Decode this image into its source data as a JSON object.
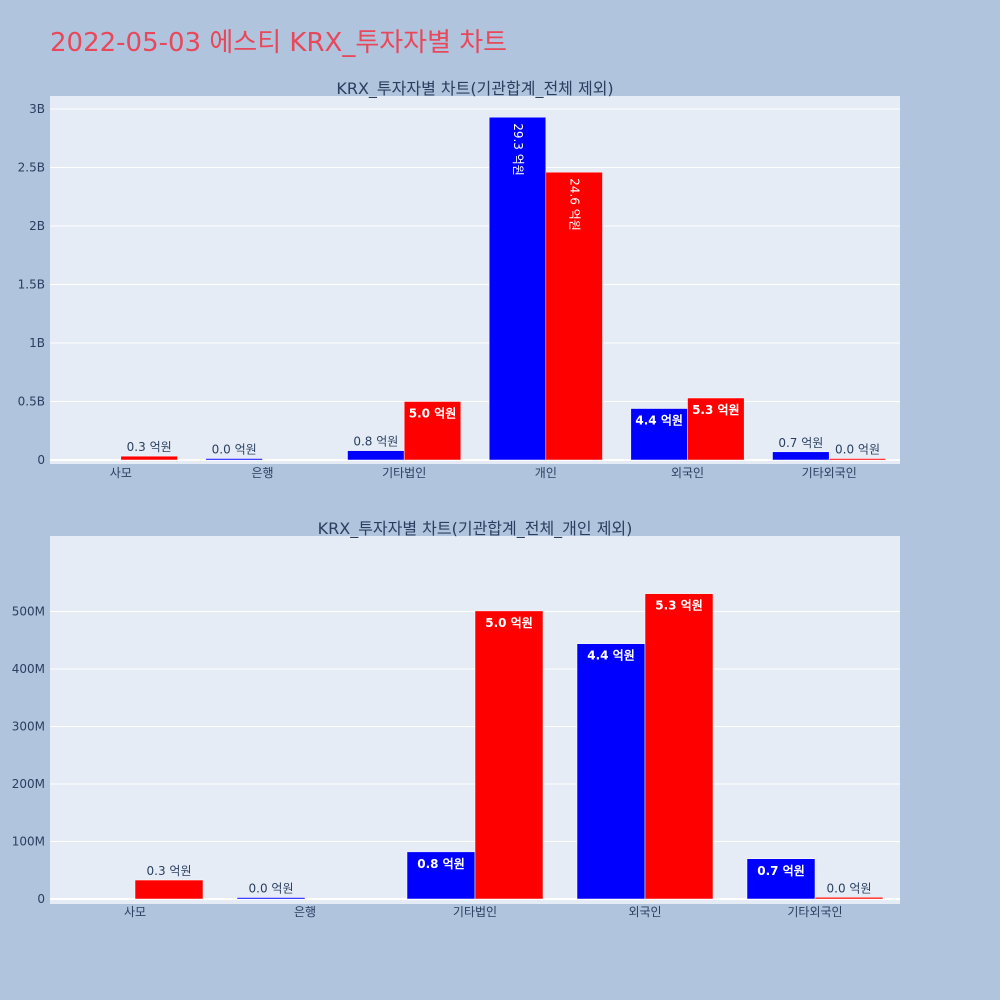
{
  "title": "2022-05-03 에스티 KRX_투자자별 차트",
  "colors": {
    "page_bg": "#b0c4de",
    "plot_bg": "#e5ecf6",
    "series_a": "#0000ff",
    "series_b": "#ff0000",
    "title": "#e8485a"
  },
  "chart_data": [
    {
      "type": "bar",
      "title": "KRX_투자자별 차트(기관합계_전체 제외)",
      "categories": [
        "사모",
        "은행",
        "기타법인",
        "개인",
        "외국인",
        "기타외국인"
      ],
      "ylim": [
        0,
        3000000000
      ],
      "yticks": [
        0,
        500000000,
        1000000000,
        1500000000,
        2000000000,
        2500000000,
        3000000000
      ],
      "ytick_labels": [
        "0",
        "0.5B",
        "1B",
        "1.5B",
        "2B",
        "2.5B",
        "3B"
      ],
      "grid": true,
      "series": [
        {
          "color": "#0000ff",
          "values": [
            0,
            2000000,
            80000000,
            2930000000,
            440000000,
            70000000
          ],
          "labels": [
            "",
            "0.0 억원",
            "0.8 억원",
            "29.3 억원",
            "4.4 억원",
            "0.7 억원"
          ]
        },
        {
          "color": "#ff0000",
          "values": [
            33000000,
            0,
            500000000,
            2460000000,
            530000000,
            3000000
          ],
          "labels": [
            "0.3 억원",
            "",
            "5.0 억원",
            "24.6 억원",
            "5.3 억원",
            "0.0 억원"
          ]
        }
      ]
    },
    {
      "type": "bar",
      "title": "KRX_투자자별 차트(기관합계_전체_개인 제외)",
      "categories": [
        "사모",
        "은행",
        "기타법인",
        "외국인",
        "기타외국인"
      ],
      "ylim": [
        0,
        560000000
      ],
      "yticks": [
        0,
        100000000,
        200000000,
        300000000,
        400000000,
        500000000
      ],
      "ytick_labels": [
        "0",
        "100M",
        "200M",
        "300M",
        "400M",
        "500M"
      ],
      "grid": true,
      "series": [
        {
          "color": "#0000ff",
          "values": [
            0,
            2000000,
            82000000,
            444000000,
            70000000
          ],
          "labels": [
            "",
            "0.0 억원",
            "0.8 억원",
            "4.4 억원",
            "0.7 억원"
          ]
        },
        {
          "color": "#ff0000",
          "values": [
            33000000,
            0,
            501000000,
            531000000,
            3000000
          ],
          "labels": [
            "0.3 억원",
            "",
            "5.0 억원",
            "5.3 억원",
            "0.0 억원"
          ]
        }
      ]
    }
  ]
}
